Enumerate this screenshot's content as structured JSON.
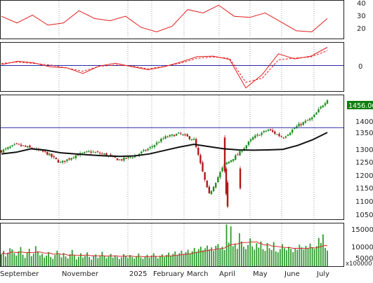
{
  "colors": {
    "up": "#1f8f1f",
    "down": "#b01818",
    "ma_long": "#111111",
    "indicator": "#e01c1c",
    "reference": "#2a2aa8",
    "volume_bars": "#2e9b2e",
    "volume_ma": "#d22a2a",
    "grid": "#7b7b7b",
    "price_badge_bg": "#0f7f0f",
    "price_badge_fg": "#ffffff"
  },
  "x_axis": {
    "labels": [
      "September",
      "November",
      "2025",
      "February",
      "March",
      "April",
      "May",
      "June",
      "July"
    ],
    "volume_unit_label": "x100000"
  },
  "panels": {
    "rsi": {
      "ticks": [
        "40",
        "30",
        "20"
      ]
    },
    "macd": {
      "ticks": [
        "0"
      ]
    },
    "price": {
      "ticks": [
        "1400",
        "1350",
        "1300",
        "1250",
        "1200",
        "1150",
        "1100",
        "1050"
      ],
      "last_price_label": "1456.060",
      "reference_level": 1355
    },
    "volume": {
      "ticks": [
        "15000",
        "10000",
        "5000"
      ]
    }
  },
  "chart_data": [
    {
      "type": "line",
      "title": "",
      "series": [
        {
          "values": [
            33,
            27,
            34,
            25,
            27,
            38,
            31,
            29,
            33,
            23,
            19,
            24,
            39,
            36,
            43,
            33,
            32,
            36,
            28,
            20,
            19,
            31
          ]
        }
      ],
      "ylim": [
        13,
        47
      ]
    },
    {
      "type": "line",
      "title": "",
      "series": [
        {
          "values": [
            0.3,
            1.5,
            0.9,
            -0.5,
            -0.8,
            -2.8,
            -0.2,
            0.8,
            -0.4,
            -1.5,
            -0.4,
            1.2,
            3.1,
            3.3,
            2.1,
            -7.9,
            -3.2,
            4.1,
            2.3,
            3.3,
            6.4
          ]
        },
        {
          "values": [
            0.7,
            1.2,
            0.7,
            0.2,
            -0.9,
            -2.0,
            -0.3,
            0.2,
            -0.2,
            -1.2,
            -0.3,
            0.8,
            2.5,
            3.0,
            2.5,
            -5.9,
            -4.5,
            2.0,
            2.6,
            3.0,
            5.2
          ]
        }
      ],
      "ylim": [
        -9,
        8
      ]
    },
    {
      "type": "line",
      "title": "",
      "series": [
        {
          "values": [
            1272,
            1295,
            1282,
            1266,
            1230,
            1257,
            1270,
            1260,
            1240,
            1255,
            1282,
            1320,
            1334,
            1312,
            1115,
            1220,
            1262,
            1320,
            1348,
            1320,
            1362,
            1390,
            1456
          ]
        },
        {
          "values": [
            1262,
            1268,
            1280,
            1275,
            1266,
            1262,
            1258,
            1255,
            1253,
            1255,
            1262,
            1274,
            1286,
            1296,
            1288,
            1280,
            1276,
            1275,
            1276,
            1278,
            1292,
            1312,
            1338
          ]
        }
      ],
      "ylim": [
        1030,
        1470
      ]
    },
    {
      "type": "bar",
      "title": "",
      "ylim": [
        4000,
        18500
      ],
      "volume_values": [
        8000,
        9200,
        7300,
        8600,
        10100,
        9700,
        8400,
        7600,
        9100,
        10500,
        7900,
        6800,
        8700,
        9900,
        7400,
        8300,
        10800,
        9000,
        7700,
        8200,
        6900,
        7600,
        8800,
        7100,
        6500,
        7800,
        9300,
        8000,
        7000,
        8500,
        7300,
        6600,
        8100,
        9500,
        7700,
        6300,
        7200,
        8400,
        6900,
        7500,
        8700,
        7100,
        6200,
        7600,
        8000,
        6800,
        7400,
        8900,
        7600,
        6700,
        7300,
        8200,
        6900,
        7700,
        7200,
        6400,
        7000,
        8100,
        7500,
        6800,
        7800,
        7100,
        6600,
        7400,
        8300,
        7000,
        6500,
        7200,
        7900,
        6900,
        7600,
        8400,
        7300,
        6700,
        7500,
        8000,
        7100,
        7800,
        8600,
        7400,
        8200,
        9000,
        7700,
        8400,
        9300,
        8100,
        8800,
        9600,
        8300,
        9100,
        10200,
        8900,
        9800,
        10600,
        9400,
        10100,
        11000,
        9700,
        10400,
        9200,
        10900,
        11500,
        9900,
        10600,
        9500,
        18200,
        12000,
        17500,
        10800,
        11600,
        9900,
        15200,
        12400,
        10600,
        9800,
        11200,
        13400,
        10700,
        9600,
        11800,
        10300,
        12400,
        9800,
        9200,
        11900,
        10100,
        9500,
        12200,
        9000,
        8700,
        9800,
        11500,
        10100,
        9400,
        10600,
        9900,
        8800,
        10200,
        9600,
        11300,
        10400,
        9700,
        10900,
        10000,
        11700,
        10300,
        9800,
        10800,
        13600,
        11900,
        14800,
        10200,
        9300
      ]
    }
  ]
}
